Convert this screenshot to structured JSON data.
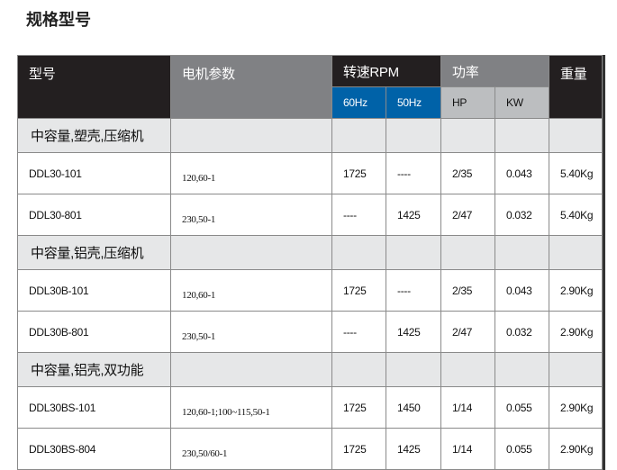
{
  "title": "规格型号",
  "header": {
    "model": "型号",
    "motor": "电机参数",
    "rpm": "转速RPM",
    "power": "功率",
    "weight": "重量",
    "hz60": "60Hz",
    "hz50": "50Hz",
    "hp": "HP",
    "kw": "KW"
  },
  "colors": {
    "header_dark": "#231f20",
    "header_grey": "#808184",
    "hz_blue": "#0062a8",
    "sub_grey": "#bcbec0",
    "section_bg": "#e6e7e8"
  },
  "sections": [
    {
      "name": "中容量,塑壳,压缩机",
      "rows": [
        {
          "model": "DDL30-101",
          "params": "120,60-1",
          "rpm60": "1725",
          "rpm50": "----",
          "hp": "2/35",
          "kw": "0.043",
          "weight": "5.40Kg"
        },
        {
          "model": "DDL30-801",
          "params": "230,50-1",
          "rpm60": "----",
          "rpm50": "1425",
          "hp": "2/47",
          "kw": "0.032",
          "weight": "5.40Kg"
        }
      ]
    },
    {
      "name": "中容量,铝壳,压缩机",
      "rows": [
        {
          "model": "DDL30B-101",
          "params": "120,60-1",
          "rpm60": "1725",
          "rpm50": "----",
          "hp": "2/35",
          "kw": "0.043",
          "weight": "2.90Kg"
        },
        {
          "model": "DDL30B-801",
          "params": "230,50-1",
          "rpm60": "----",
          "rpm50": "1425",
          "hp": "2/47",
          "kw": "0.032",
          "weight": "2.90Kg"
        }
      ]
    },
    {
      "name": "中容量,铝壳,双功能",
      "rows": [
        {
          "model": "DDL30BS-101",
          "params": "120,60-1;100~115,50-1",
          "rpm60": "1725",
          "rpm50": "1450",
          "hp": "1/14",
          "kw": "0.055",
          "weight": "2.90Kg"
        },
        {
          "model": "DDL30BS-804",
          "params": "230,50/60-1",
          "rpm60": "1725",
          "rpm50": "1425",
          "hp": "1/14",
          "kw": "0.055",
          "weight": "2.90Kg"
        }
      ]
    }
  ]
}
